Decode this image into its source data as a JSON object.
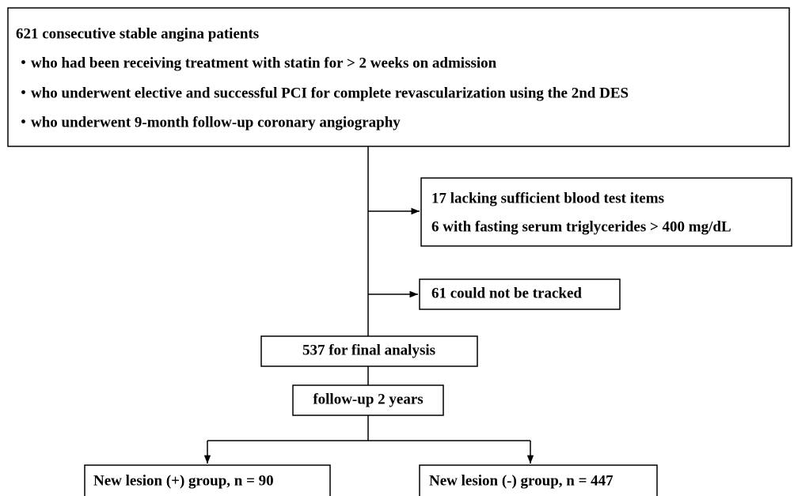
{
  "nodes": [
    {
      "lines": [
        "621 consecutive stable angina patients",
        "・who had been receiving treatment with statin for > 2 weeks on admission",
        "・who underwent elective and successful PCI for complete revascularization using the 2nd DES",
        "・who underwent 9-month follow-up coronary angiography"
      ]
    },
    {
      "lines": [
        "17 lacking sufficient blood test items",
        "6 with fasting serum triglycerides > 400 mg/dL"
      ]
    },
    {
      "lines": [
        "61 could not be tracked"
      ]
    },
    {
      "lines": [
        "537 for final analysis"
      ]
    },
    {
      "lines": [
        "follow-up 2 years"
      ]
    },
    {
      "lines": [
        "New lesion (+) group, n = 90"
      ]
    },
    {
      "lines": [
        "New lesion (-) group, n = 447"
      ]
    }
  ]
}
